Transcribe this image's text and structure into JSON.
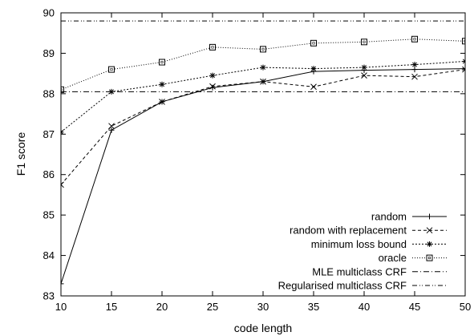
{
  "chart_data": {
    "type": "line",
    "title": "",
    "xlabel": "code length",
    "ylabel": "F1 score",
    "xlim": [
      10,
      50
    ],
    "ylim": [
      83,
      90
    ],
    "x": [
      10,
      15,
      20,
      25,
      30,
      35,
      40,
      45,
      50
    ],
    "xticks": [
      "10",
      "15",
      "20",
      "25",
      "30",
      "35",
      "40",
      "45",
      "50"
    ],
    "yticks": [
      "83",
      "84",
      "85",
      "86",
      "87",
      "88",
      "89",
      "90"
    ],
    "grid": false,
    "legend_position": "bottom-right",
    "series": [
      {
        "name": "random",
        "marker": "plus",
        "dash": "solid",
        "values": [
          83.3,
          87.1,
          87.8,
          88.15,
          88.3,
          88.55,
          88.58,
          88.6,
          88.62
        ]
      },
      {
        "name": "random with replacement",
        "marker": "x",
        "dash": "dashed",
        "values": [
          85.75,
          87.2,
          87.8,
          88.18,
          88.3,
          88.17,
          88.45,
          88.42,
          88.6
        ]
      },
      {
        "name": "minimum loss bound",
        "marker": "star",
        "dash": "dotted",
        "values": [
          87.05,
          88.05,
          88.23,
          88.45,
          88.65,
          88.62,
          88.65,
          88.72,
          88.8
        ]
      },
      {
        "name": "oracle",
        "marker": "square",
        "dash": "fine-dotted",
        "values": [
          88.1,
          88.6,
          88.78,
          89.15,
          89.1,
          89.25,
          89.28,
          89.35,
          89.3
        ]
      },
      {
        "name": "MLE multiclass CRF",
        "marker": "none",
        "dash": "dash-dot",
        "constant": 88.05
      },
      {
        "name": "Regularised multiclass CRF",
        "marker": "none",
        "dash": "dash-dot-dot",
        "constant": 89.8
      }
    ]
  }
}
